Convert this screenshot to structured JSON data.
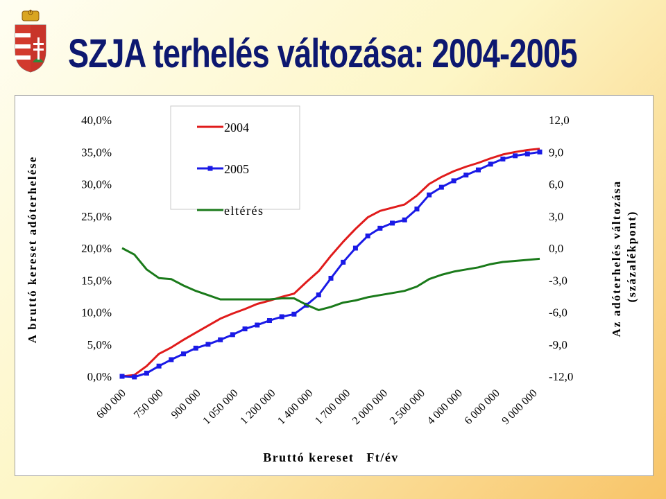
{
  "slide": {
    "title": "SZJA terhelés változása: 2004-2005"
  },
  "icons": {
    "coat_of_arms": "hungarian-coat-of-arms-icon"
  },
  "chart_data": {
    "type": "line",
    "xlabel": "Bruttó kereset   Ft/év",
    "ylabel_left": "A bruttó kereset adóterhelése",
    "ylabel_right": "Az adóterhelés változása (százalékpont)",
    "x_tick_labels": [
      "600 000",
      "750 000",
      "900 000",
      "1 050 000",
      "1 200 000",
      "1 400 000",
      "1 700 000",
      "2 000 000",
      "2 500 000",
      "4 000 000",
      "6 000 000",
      "9 000 000"
    ],
    "y_left_ticks": [
      "0,0%",
      "5,0%",
      "10,0%",
      "15,0%",
      "20,0%",
      "25,0%",
      "30,0%",
      "35,0%",
      "40,0%"
    ],
    "y_right_ticks": [
      "-12,0",
      "-9,0",
      "-6,0",
      "-3,0",
      "0,0",
      "3,0",
      "6,0",
      "9,0",
      "12,0"
    ],
    "ylim_left": [
      0,
      40
    ],
    "ylim_right": [
      -12,
      12
    ],
    "legend_position": "top-left",
    "series": [
      {
        "name": "2004",
        "axis": "left",
        "color": "#e01b1b",
        "marker": "none",
        "values": [
          0,
          0.2,
          1.6,
          3.5,
          4.5,
          5.7,
          6.8,
          7.9,
          9.0,
          9.8,
          10.5,
          11.3,
          11.8,
          12.4,
          12.9,
          14.7,
          16.4,
          18.8,
          21.0,
          23.0,
          24.8,
          25.8,
          26.3,
          26.8,
          28.2,
          30.0,
          31.1,
          32.0,
          32.7,
          33.3,
          34.0,
          34.6,
          35.0,
          35.3,
          35.5
        ]
      },
      {
        "name": "2005",
        "axis": "left",
        "color": "#1a1ae6",
        "marker": "square",
        "values": [
          0,
          -0.1,
          0.5,
          1.6,
          2.6,
          3.5,
          4.4,
          5.0,
          5.7,
          6.5,
          7.4,
          8.0,
          8.7,
          9.3,
          9.7,
          11.1,
          12.7,
          15.3,
          17.8,
          20.0,
          21.9,
          23.1,
          23.9,
          24.4,
          26.1,
          28.3,
          29.5,
          30.5,
          31.4,
          32.2,
          33.1,
          33.9,
          34.4,
          34.7,
          35.0
        ]
      },
      {
        "name": "eltérés",
        "axis": "right",
        "color": "#1a7a1a",
        "marker": "none",
        "values": [
          0,
          -0.6,
          -2.0,
          -2.8,
          -2.9,
          -3.5,
          -4.0,
          -4.4,
          -4.8,
          -4.8,
          -4.8,
          -4.8,
          -4.8,
          -4.7,
          -4.7,
          -5.3,
          -5.8,
          -5.5,
          -5.1,
          -4.9,
          -4.6,
          -4.4,
          -4.2,
          -4.0,
          -3.6,
          -2.9,
          -2.5,
          -2.2,
          -2.0,
          -1.8,
          -1.5,
          -1.3,
          -1.2,
          -1.1,
          -1.0
        ]
      }
    ]
  }
}
